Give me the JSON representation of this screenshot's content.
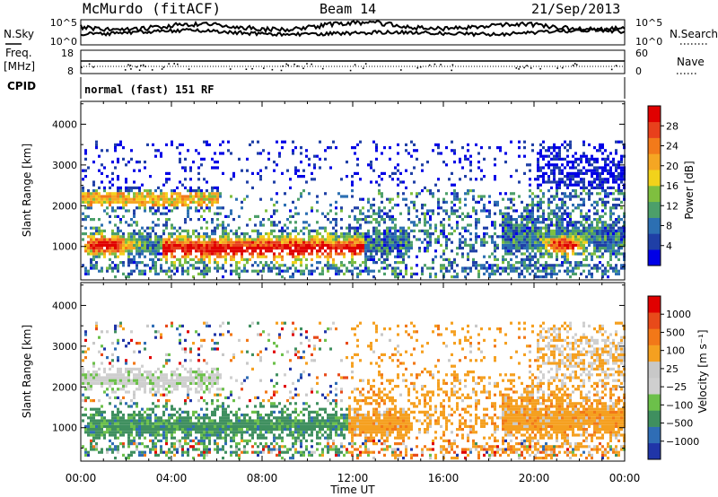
{
  "header": {
    "station": "McMurdo (fitACF)",
    "beam": "Beam 14",
    "date": "21/Sep/2013",
    "mode": "normal (fast) 151 RF"
  },
  "strips": {
    "sky_label": "N.Sky",
    "search_label": "N.Search",
    "noise_ticks": [
      "10^5",
      "10^0"
    ],
    "freq_label": "Freq.",
    "freq_unit": "[MHz]",
    "freq_ticks": [
      "18",
      "8"
    ],
    "nave_label": "Nave",
    "nave_ticks": [
      "60",
      "0"
    ],
    "cpid_label": "CPID"
  },
  "colors": {
    "power": [
      "#0000e6",
      "#1f3fa6",
      "#2c6fb2",
      "#4c9f6a",
      "#7fbf3f",
      "#f2d21b",
      "#f5a623",
      "#f27a1a",
      "#e8401c",
      "#e00000"
    ],
    "velocity": [
      "#2035a8",
      "#2f6db5",
      "#3f8f5f",
      "#6cc04a",
      "#cfcfcf",
      "#c8c8c8",
      "#f5a020",
      "#f27818",
      "#e84a1a",
      "#e00000"
    ]
  },
  "chart_data": [
    {
      "type": "heatmap",
      "name": "Power",
      "xlabel": "",
      "ylabel": "Slant Range [km]",
      "xlim": [
        0,
        24
      ],
      "ylim": [
        180,
        4560
      ],
      "y_ticks": [
        "4000",
        "3000",
        "2000",
        "1000"
      ],
      "colorbar": {
        "label": "Power [dB]",
        "ticks": [
          "28",
          "24",
          "20",
          "16",
          "12",
          "8",
          "4"
        ],
        "range": [
          0,
          30
        ]
      }
    },
    {
      "type": "heatmap",
      "name": "Velocity",
      "xlabel": "Time UT",
      "ylabel": "Slant Range [km]",
      "xlim": [
        0,
        24
      ],
      "ylim": [
        180,
        4560
      ],
      "y_ticks": [
        "4000",
        "3000",
        "2000",
        "1000"
      ],
      "x_ticks": [
        "00:00",
        "04:00",
        "08:00",
        "12:00",
        "16:00",
        "20:00",
        "00:00"
      ],
      "colorbar": {
        "label": "Velocity [m s⁻¹]",
        "ticks": [
          "1000",
          "500",
          "100",
          "25",
          "−25",
          "−100",
          "−500",
          "−1000"
        ]
      }
    }
  ]
}
